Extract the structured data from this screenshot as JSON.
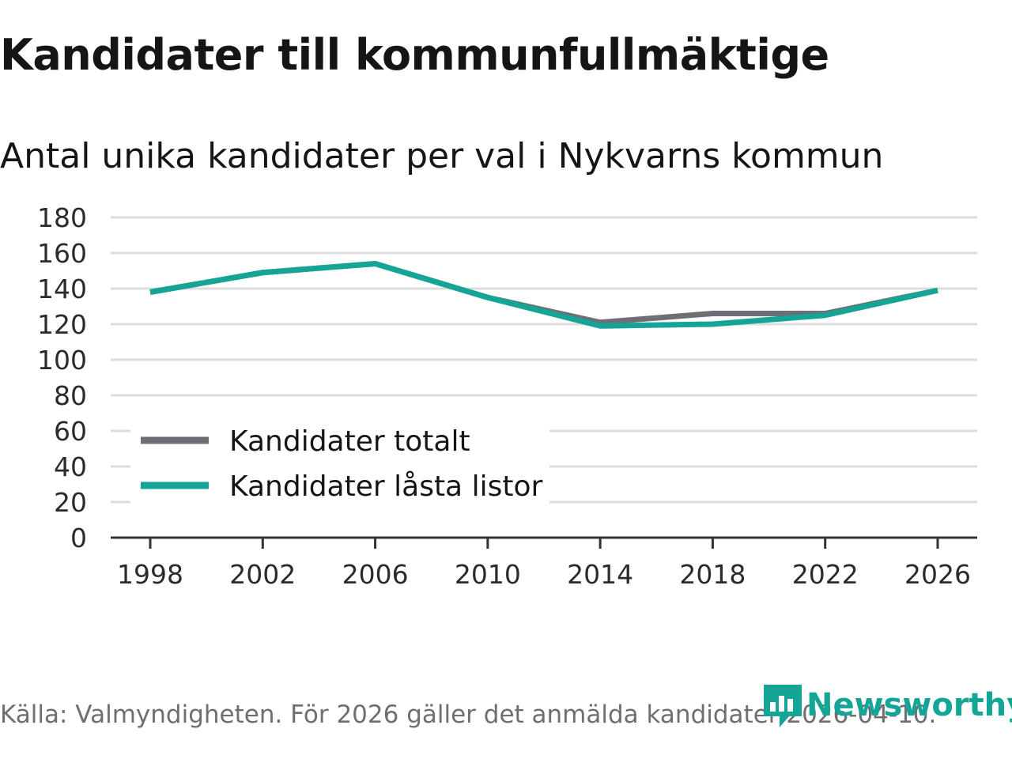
{
  "chart_data": {
    "type": "line",
    "title": "Kandidater till kommunfullmäktige",
    "subtitle": "Antal unika kandidater per val i Nykvarns kommun",
    "x": [
      "1998",
      "2002",
      "2006",
      "2010",
      "2014",
      "2018",
      "2022",
      "2026"
    ],
    "series": [
      {
        "name": "Kandidater totalt",
        "color": "#6e6e75",
        "values": [
          138,
          149,
          154,
          135,
          121,
          126,
          126,
          139
        ]
      },
      {
        "name": "Kandidater låsta listor",
        "color": "#15a597",
        "values": [
          138,
          149,
          154,
          135,
          119,
          120,
          125,
          139
        ]
      }
    ],
    "yticks": [
      "0",
      "20",
      "40",
      "60",
      "80",
      "100",
      "120",
      "140",
      "160",
      "180"
    ],
    "ylim": [
      0,
      180
    ],
    "grid": true,
    "legend": "bottom-left",
    "xlabel": "",
    "ylabel": ""
  },
  "footer": {
    "source": "Källa: Valmyndigheten. För 2026 gäller det anmälda kandidater 2026-04-10.",
    "brand": "Newsworthy",
    "brand_icon": "newsworthy-logo-icon",
    "brand_color": "#15a597"
  }
}
